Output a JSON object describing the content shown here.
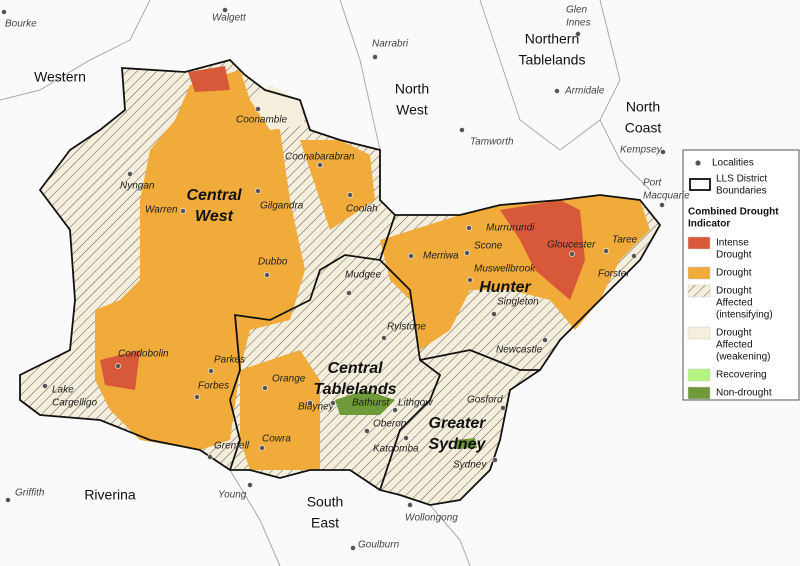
{
  "districts": [
    [
      "Western"
    ],
    [
      "North",
      "West"
    ],
    [
      "Northern",
      "Tablelands"
    ],
    [
      "North",
      "Coast"
    ],
    [
      "Central",
      "West"
    ],
    [
      "Hunter"
    ],
    [
      "Central",
      "Tablelands"
    ],
    [
      "Greater",
      "Sydney"
    ],
    [
      "Riverina"
    ],
    [
      "South",
      "East"
    ]
  ],
  "localities": [
    [
      "Bourke"
    ],
    [
      "Walgett"
    ],
    [
      "Glen",
      "Innes"
    ],
    [
      "Narrabri"
    ],
    [
      "Armidale"
    ],
    [
      "Coonamble"
    ],
    [
      "Tamworth"
    ],
    [
      "Kempsey"
    ],
    [
      "Coonabarabran"
    ],
    [
      "Port",
      "Macquarie"
    ],
    [
      "Nyngan"
    ],
    [
      "Warren"
    ],
    [
      "Gilgandra"
    ],
    [
      "Coolah"
    ],
    [
      "Murrurundi"
    ],
    [
      "Gloucester"
    ],
    [
      "Taree"
    ],
    [
      "Dubbo"
    ],
    [
      "Merriwa"
    ],
    [
      "Scone"
    ],
    [
      "Muswellbrook"
    ],
    [
      "Forster"
    ],
    [
      "Mudgee"
    ],
    [
      "Singleton"
    ],
    [
      "Rylstone"
    ],
    [
      "Condobolin"
    ],
    [
      "Parkes"
    ],
    [
      "Newcastle"
    ],
    [
      "Orange"
    ],
    [
      "Forbes"
    ],
    [
      "Lake",
      "Cargelligo"
    ],
    [
      "Blayney"
    ],
    [
      "Bathurst"
    ],
    [
      "Lithgow"
    ],
    [
      "Gosford"
    ],
    [
      "Oberon"
    ],
    [
      "Katoomba"
    ],
    [
      "Sydney"
    ],
    [
      "Grenfell"
    ],
    [
      "Cowra"
    ],
    [
      "Griffith"
    ],
    [
      "Young"
    ],
    [
      "Wollongong"
    ],
    [
      "Goulburn"
    ]
  ],
  "legend": {
    "localities": "Localities",
    "boundaries": [
      "LLS District",
      "Boundaries"
    ],
    "title": [
      "Combined Drought",
      "Indicator"
    ],
    "items": [
      [
        "Intense",
        "Drought"
      ],
      [
        "Drought"
      ],
      [
        "Drought",
        "Affected",
        "(intensifying)"
      ],
      [
        "Drought",
        "Affected",
        "(weakening)"
      ],
      [
        "Recovering"
      ],
      [
        "Non-drought"
      ]
    ]
  }
}
